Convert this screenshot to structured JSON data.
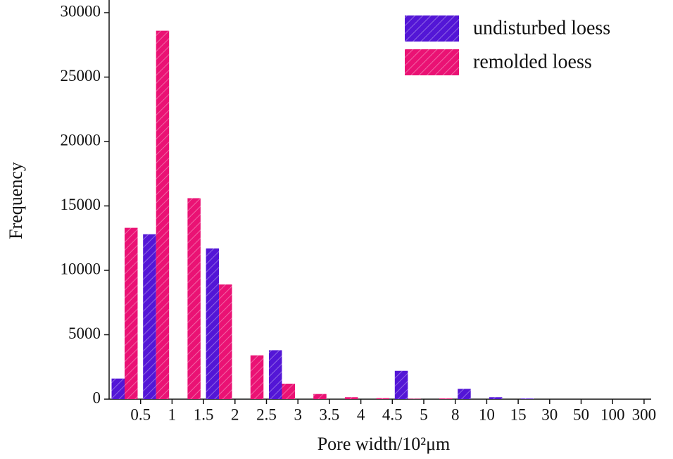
{
  "chart_data": {
    "type": "bar",
    "x_label": "Pore width/10²μm",
    "y_label": "Frequency",
    "categories": [
      "0.5",
      "1",
      "1.5",
      "2",
      "2.5",
      "3",
      "3.5",
      "4",
      "4.5",
      "5",
      "8",
      "10",
      "15",
      "30",
      "50",
      "100",
      "300"
    ],
    "series": [
      {
        "name": "undisturbed loess",
        "color": "#5316d6",
        "values": [
          1600,
          12800,
          0,
          11700,
          0,
          3800,
          0,
          0,
          0,
          2200,
          0,
          800,
          150,
          50,
          0,
          0,
          0
        ]
      },
      {
        "name": "remolded loess",
        "color": "#ea1274",
        "values": [
          13300,
          28600,
          15600,
          8900,
          3400,
          1200,
          400,
          150,
          80,
          30,
          60,
          0,
          0,
          0,
          0,
          0,
          0
        ]
      }
    ],
    "ylim": [
      0,
      30000
    ],
    "yticks": [
      0,
      5000,
      10000,
      15000,
      20000,
      25000,
      30000
    ],
    "legend": "top-right"
  }
}
